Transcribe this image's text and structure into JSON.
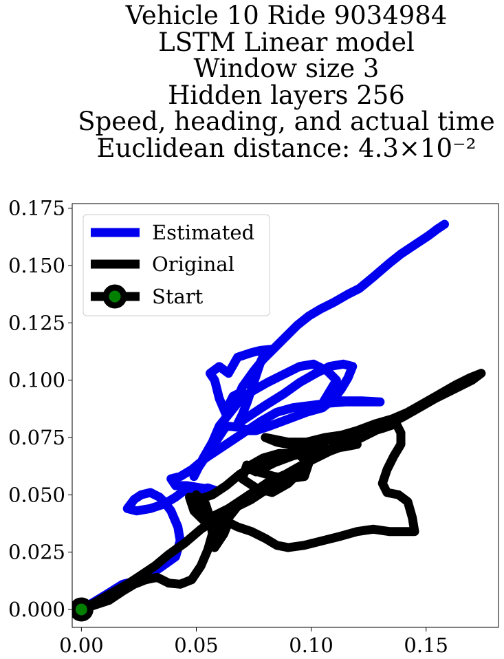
{
  "chart_data": {
    "type": "line",
    "title_lines": [
      "Vehicle 10 Ride 9034984",
      "LSTM Linear model",
      "Window size 3",
      "Hidden layers 256",
      "Speed, heading, and actual time",
      "Euclidean distance: 4.3×10⁻²"
    ],
    "xlabel": "",
    "ylabel": "",
    "xlim": [
      -0.004,
      0.1815
    ],
    "ylim": [
      -0.0078,
      0.177
    ],
    "xticks": [
      0.0,
      0.05,
      0.1,
      0.15
    ],
    "xtick_labels": [
      "0.00",
      "0.05",
      "0.10",
      "0.15"
    ],
    "yticks": [
      0.0,
      0.025,
      0.05,
      0.075,
      0.1,
      0.125,
      0.15,
      0.175
    ],
    "ytick_labels": [
      "0.000",
      "0.025",
      "0.050",
      "0.075",
      "0.100",
      "0.125",
      "0.150",
      "0.175"
    ],
    "grid": false,
    "legend_position": "top-left",
    "series": [
      {
        "name": "Estimated",
        "color": "#0000ee",
        "points": [
          [
            0.0,
            0.0
          ],
          [
            0.01,
            0.006
          ],
          [
            0.018,
            0.011
          ],
          [
            0.026,
            0.013
          ],
          [
            0.034,
            0.018
          ],
          [
            0.041,
            0.023
          ],
          [
            0.043,
            0.03
          ],
          [
            0.042,
            0.036
          ],
          [
            0.039,
            0.043
          ],
          [
            0.036,
            0.047
          ],
          [
            0.034,
            0.049
          ],
          [
            0.03,
            0.051
          ],
          [
            0.026,
            0.05
          ],
          [
            0.023,
            0.048
          ],
          [
            0.02,
            0.044
          ],
          [
            0.024,
            0.043
          ],
          [
            0.03,
            0.044
          ],
          [
            0.036,
            0.046
          ],
          [
            0.041,
            0.049
          ],
          [
            0.045,
            0.052
          ],
          [
            0.05,
            0.052
          ],
          [
            0.055,
            0.053
          ],
          [
            0.058,
            0.052
          ],
          [
            0.052,
            0.053
          ],
          [
            0.046,
            0.054
          ],
          [
            0.041,
            0.054
          ],
          [
            0.039,
            0.057
          ],
          [
            0.043,
            0.058
          ],
          [
            0.048,
            0.061
          ],
          [
            0.054,
            0.066
          ],
          [
            0.06,
            0.07
          ],
          [
            0.066,
            0.074
          ],
          [
            0.072,
            0.078
          ],
          [
            0.078,
            0.0795
          ],
          [
            0.073,
            0.078
          ],
          [
            0.068,
            0.0795
          ],
          [
            0.063,
            0.08
          ],
          [
            0.059,
            0.074
          ],
          [
            0.055,
            0.068
          ],
          [
            0.051,
            0.062
          ],
          [
            0.049,
            0.058
          ],
          [
            0.053,
            0.066
          ],
          [
            0.057,
            0.073
          ],
          [
            0.06,
            0.08
          ],
          [
            0.064,
            0.085
          ],
          [
            0.068,
            0.09
          ],
          [
            0.07,
            0.095
          ],
          [
            0.066,
            0.093
          ],
          [
            0.064,
            0.089
          ],
          [
            0.063,
            0.085
          ],
          [
            0.06,
            0.092
          ],
          [
            0.058,
            0.1
          ],
          [
            0.056,
            0.103
          ],
          [
            0.06,
            0.106
          ],
          [
            0.064,
            0.103
          ],
          [
            0.068,
            0.11
          ],
          [
            0.074,
            0.112
          ],
          [
            0.078,
            0.113
          ],
          [
            0.083,
            0.1135
          ],
          [
            0.08,
            0.1125
          ],
          [
            0.078,
            0.108
          ],
          [
            0.076,
            0.102
          ],
          [
            0.074,
            0.096
          ],
          [
            0.072,
            0.09
          ],
          [
            0.07,
            0.085
          ],
          [
            0.068,
            0.081
          ],
          [
            0.074,
            0.085
          ],
          [
            0.08,
            0.089
          ],
          [
            0.088,
            0.094
          ],
          [
            0.095,
            0.099
          ],
          [
            0.102,
            0.103
          ],
          [
            0.108,
            0.106
          ],
          [
            0.114,
            0.107
          ],
          [
            0.118,
            0.106
          ],
          [
            0.116,
            0.101
          ],
          [
            0.113,
            0.096
          ],
          [
            0.11,
            0.092
          ],
          [
            0.105,
            0.088
          ],
          [
            0.098,
            0.086
          ],
          [
            0.09,
            0.083
          ],
          [
            0.082,
            0.08
          ],
          [
            0.076,
            0.078
          ],
          [
            0.072,
            0.078
          ],
          [
            0.078,
            0.082
          ],
          [
            0.085,
            0.086
          ],
          [
            0.092,
            0.088
          ],
          [
            0.1,
            0.089
          ],
          [
            0.108,
            0.09
          ],
          [
            0.115,
            0.0905
          ],
          [
            0.122,
            0.0905
          ],
          [
            0.13,
            0.0905
          ],
          [
            0.122,
            0.091
          ],
          [
            0.11,
            0.091
          ],
          [
            0.105,
            0.09
          ],
          [
            0.108,
            0.095
          ],
          [
            0.111,
            0.1
          ],
          [
            0.107,
            0.104
          ],
          [
            0.101,
            0.107
          ],
          [
            0.095,
            0.106
          ],
          [
            0.088,
            0.1025
          ],
          [
            0.081,
            0.099
          ],
          [
            0.074,
            0.095
          ],
          [
            0.067,
            0.09
          ],
          [
            0.07,
            0.097
          ],
          [
            0.075,
            0.104
          ],
          [
            0.079,
            0.109
          ],
          [
            0.084,
            0.114
          ],
          [
            0.089,
            0.119
          ],
          [
            0.094,
            0.124
          ],
          [
            0.099,
            0.128
          ],
          [
            0.104,
            0.131
          ],
          [
            0.11,
            0.134
          ],
          [
            0.116,
            0.1375
          ],
          [
            0.121,
            0.14
          ],
          [
            0.127,
            0.145
          ],
          [
            0.134,
            0.151
          ],
          [
            0.139,
            0.155
          ],
          [
            0.145,
            0.159
          ],
          [
            0.151,
            0.163
          ],
          [
            0.155,
            0.166
          ],
          [
            0.158,
            0.168
          ]
        ]
      },
      {
        "name": "Original",
        "color": "#000000",
        "points": [
          [
            0.0,
            0.0
          ],
          [
            0.006,
            0.002
          ],
          [
            0.012,
            0.004
          ],
          [
            0.018,
            0.008
          ],
          [
            0.023,
            0.011
          ],
          [
            0.028,
            0.013
          ],
          [
            0.033,
            0.014
          ],
          [
            0.038,
            0.0115
          ],
          [
            0.043,
            0.011
          ],
          [
            0.048,
            0.013
          ],
          [
            0.052,
            0.019
          ],
          [
            0.055,
            0.026
          ],
          [
            0.057,
            0.033
          ],
          [
            0.056,
            0.04
          ],
          [
            0.054,
            0.046
          ],
          [
            0.05,
            0.05
          ],
          [
            0.051,
            0.045
          ],
          [
            0.054,
            0.039
          ],
          [
            0.058,
            0.04
          ],
          [
            0.063,
            0.043
          ],
          [
            0.068,
            0.045
          ],
          [
            0.064,
            0.04
          ],
          [
            0.06,
            0.036
          ],
          [
            0.057,
            0.031
          ],
          [
            0.058,
            0.027
          ],
          [
            0.062,
            0.033
          ],
          [
            0.064,
            0.038
          ],
          [
            0.068,
            0.036
          ],
          [
            0.074,
            0.034
          ],
          [
            0.08,
            0.031
          ],
          [
            0.085,
            0.028
          ],
          [
            0.09,
            0.027
          ],
          [
            0.097,
            0.028
          ],
          [
            0.105,
            0.03
          ],
          [
            0.113,
            0.032
          ],
          [
            0.12,
            0.034
          ],
          [
            0.127,
            0.035
          ],
          [
            0.134,
            0.034
          ],
          [
            0.14,
            0.034
          ],
          [
            0.145,
            0.034
          ],
          [
            0.144,
            0.04
          ],
          [
            0.142,
            0.047
          ],
          [
            0.138,
            0.05
          ],
          [
            0.133,
            0.051
          ],
          [
            0.131,
            0.055
          ],
          [
            0.133,
            0.061
          ],
          [
            0.136,
            0.067
          ],
          [
            0.139,
            0.072
          ],
          [
            0.139,
            0.077
          ],
          [
            0.137,
            0.081
          ],
          [
            0.131,
            0.079
          ],
          [
            0.124,
            0.077
          ],
          [
            0.117,
            0.074
          ],
          [
            0.11,
            0.071
          ],
          [
            0.103,
            0.067
          ],
          [
            0.096,
            0.063
          ],
          [
            0.089,
            0.059
          ],
          [
            0.082,
            0.056
          ],
          [
            0.076,
            0.052
          ],
          [
            0.07,
            0.048
          ],
          [
            0.064,
            0.044
          ],
          [
            0.058,
            0.041
          ],
          [
            0.054,
            0.038
          ],
          [
            0.049,
            0.043
          ],
          [
            0.047,
            0.049
          ],
          [
            0.051,
            0.048
          ],
          [
            0.057,
            0.05
          ],
          [
            0.063,
            0.054
          ],
          [
            0.069,
            0.059
          ],
          [
            0.076,
            0.063
          ],
          [
            0.083,
            0.066
          ],
          [
            0.09,
            0.068
          ],
          [
            0.097,
            0.071
          ],
          [
            0.104,
            0.073
          ],
          [
            0.111,
            0.075
          ],
          [
            0.117,
            0.076
          ],
          [
            0.12,
            0.072
          ],
          [
            0.115,
            0.071
          ],
          [
            0.108,
            0.07
          ],
          [
            0.1,
            0.069
          ],
          [
            0.092,
            0.067
          ],
          [
            0.084,
            0.064
          ],
          [
            0.076,
            0.06
          ],
          [
            0.072,
            0.062
          ],
          [
            0.079,
            0.066
          ],
          [
            0.086,
            0.068
          ],
          [
            0.094,
            0.068
          ],
          [
            0.099,
            0.064
          ],
          [
            0.097,
            0.058
          ],
          [
            0.09,
            0.057
          ],
          [
            0.084,
            0.058
          ],
          [
            0.077,
            0.06
          ],
          [
            0.072,
            0.063
          ],
          [
            0.07,
            0.057
          ],
          [
            0.076,
            0.053
          ],
          [
            0.083,
            0.051
          ],
          [
            0.09,
            0.055
          ],
          [
            0.096,
            0.061
          ],
          [
            0.1,
            0.066
          ],
          [
            0.096,
            0.07
          ],
          [
            0.09,
            0.072
          ],
          [
            0.085,
            0.073
          ],
          [
            0.08,
            0.075
          ],
          [
            0.09,
            0.073
          ],
          [
            0.098,
            0.073
          ],
          [
            0.106,
            0.075
          ],
          [
            0.113,
            0.076
          ],
          [
            0.12,
            0.078
          ],
          [
            0.128,
            0.081
          ],
          [
            0.135,
            0.083
          ],
          [
            0.142,
            0.086
          ],
          [
            0.149,
            0.09
          ],
          [
            0.156,
            0.094
          ],
          [
            0.163,
            0.098
          ],
          [
            0.169,
            0.101
          ],
          [
            0.174,
            0.103
          ],
          [
            0.17,
            0.1
          ],
          [
            0.162,
            0.096
          ],
          [
            0.154,
            0.092
          ],
          [
            0.147,
            0.088
          ],
          [
            0.14,
            0.084
          ],
          [
            0.132,
            0.08
          ],
          [
            0.124,
            0.076
          ],
          [
            0.116,
            0.072
          ],
          [
            0.108,
            0.069
          ],
          [
            0.1,
            0.065
          ],
          [
            0.092,
            0.06
          ],
          [
            0.083,
            0.054
          ],
          [
            0.074,
            0.048
          ],
          [
            0.066,
            0.044
          ],
          [
            0.058,
            0.039
          ],
          [
            0.052,
            0.035
          ],
          [
            0.045,
            0.029
          ],
          [
            0.038,
            0.024
          ],
          [
            0.032,
            0.019
          ],
          [
            0.026,
            0.015
          ],
          [
            0.02,
            0.011
          ],
          [
            0.013,
            0.007
          ],
          [
            0.006,
            0.003
          ],
          [
            0.0,
            0.0
          ]
        ]
      }
    ],
    "start": {
      "name": "Start",
      "x": 0.0,
      "y": 0.0,
      "edge_color": "#000000",
      "face_color": "#007f00"
    },
    "legend": [
      "Estimated",
      "Original",
      "Start"
    ]
  }
}
